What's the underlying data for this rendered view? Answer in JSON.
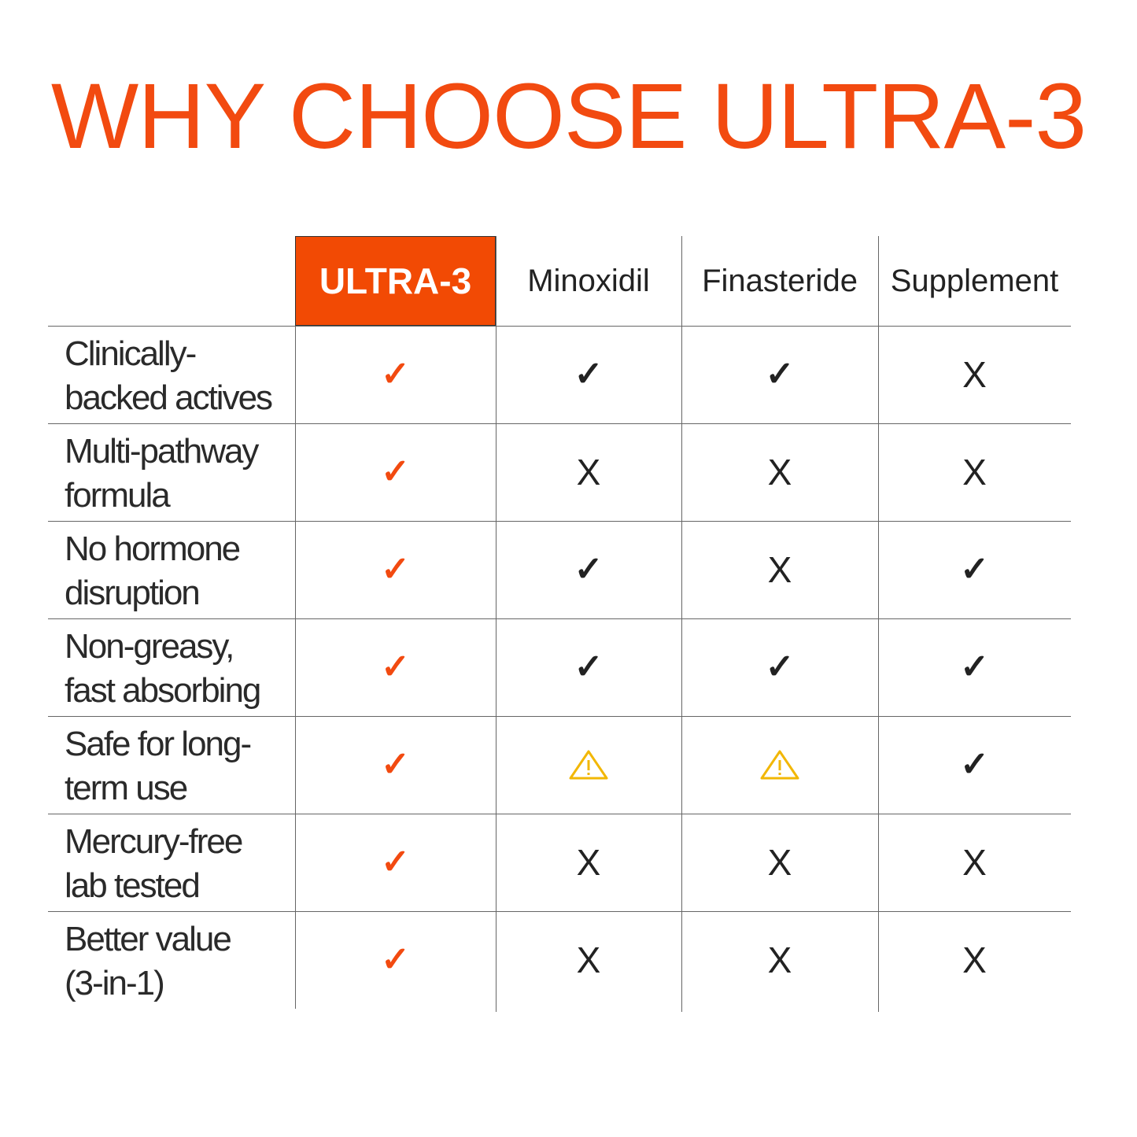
{
  "title": "WHY CHOOSE ULTRA-3",
  "colors": {
    "brand": "#f24a10",
    "warning": "#f2b705",
    "text": "#222222"
  },
  "columns": [
    "ULTRA-3",
    "Minoxidil",
    "Finasteride",
    "Supplement"
  ],
  "rows": [
    {
      "label_line1": "Clinically-",
      "label_line2": "backed actives",
      "marks": [
        "check",
        "check",
        "check",
        "x"
      ]
    },
    {
      "label_line1": "Multi-pathway",
      "label_line2": "formula",
      "marks": [
        "check",
        "x",
        "x",
        "x"
      ]
    },
    {
      "label_line1": "No hormone",
      "label_line2": "disruption",
      "marks": [
        "check",
        "check",
        "x",
        "check"
      ]
    },
    {
      "label_line1": "Non-greasy,",
      "label_line2": "fast absorbing",
      "marks": [
        "check",
        "check",
        "check",
        "check"
      ]
    },
    {
      "label_line1": "Safe for long-",
      "label_line2": "term use",
      "marks": [
        "check",
        "warning",
        "warning",
        "check"
      ]
    },
    {
      "label_line1": "Mercury-free",
      "label_line2": "lab tested",
      "marks": [
        "check",
        "x",
        "x",
        "x"
      ]
    },
    {
      "label_line1": "Better value",
      "label_line2": "(3-in-1)",
      "marks": [
        "check",
        "x",
        "x",
        "x"
      ]
    }
  ],
  "glyphs": {
    "check": "✓",
    "x": "X",
    "warning": "warning-icon"
  }
}
